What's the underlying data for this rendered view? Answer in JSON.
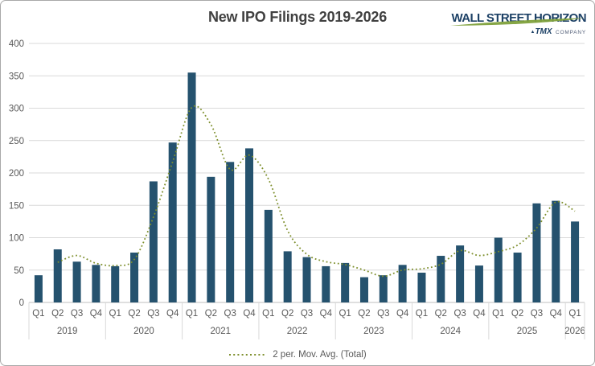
{
  "header": {
    "title": "New IPO Filings 2019-2026",
    "logo": {
      "brand": "WALL STREET HORIZON",
      "tagline_prefix": "▲",
      "tagline_brand": "TMX",
      "tagline_suffix": "COMPANY"
    }
  },
  "legend": {
    "label": "2 per. Mov. Avg. (Total)"
  },
  "colors": {
    "bar": "#25526E",
    "moving_avg": "#7E8F2D",
    "grid": "#D9D9D9",
    "axis_line": "#BFBFBF",
    "axis_text": "#595959",
    "title_text": "#404040",
    "logo_navy": "#1D4166",
    "logo_green": "#7FA13C",
    "frame_border": "#A9A9A9"
  },
  "chart_data": {
    "type": "bar",
    "title": "New IPO Filings 2019-2026",
    "series_name": "Total",
    "years": [
      "2019",
      "2020",
      "2021",
      "2022",
      "2023",
      "2024",
      "2025",
      "2026"
    ],
    "quarters_per_year": [
      4,
      4,
      4,
      4,
      4,
      4,
      4,
      1
    ],
    "quarter_labels": [
      "Q1",
      "Q2",
      "Q3",
      "Q4"
    ],
    "values": [
      42,
      82,
      63,
      58,
      56,
      77,
      187,
      247,
      355,
      194,
      217,
      238,
      143,
      79,
      70,
      56,
      61,
      39,
      42,
      58,
      46,
      72,
      88,
      57,
      100,
      77,
      153,
      157,
      125
    ],
    "moving_average": {
      "period": 2,
      "label": "2 per. Mov. Avg. (Total)"
    },
    "ylim": [
      0,
      400
    ],
    "ytick_step": 50,
    "grid": true,
    "legend_position": "bottom"
  }
}
